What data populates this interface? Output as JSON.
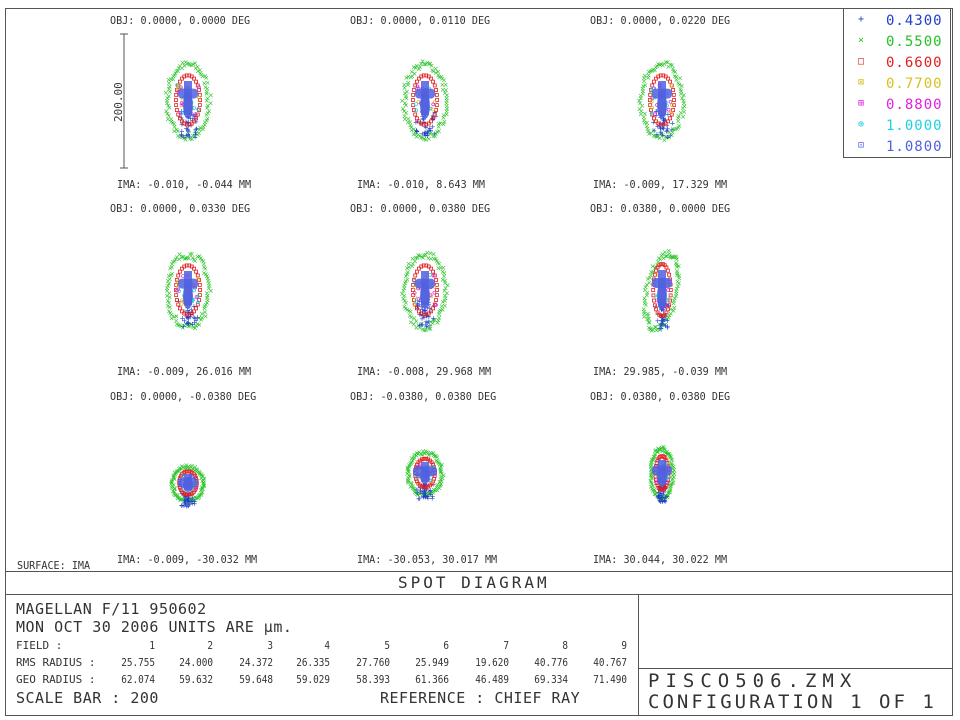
{
  "spots": [
    {
      "obj": "OBJ: 0.0000, 0.0000 DEG",
      "ima": "IMA: -0.010, -0.044 MM",
      "shape": "center"
    },
    {
      "obj": "OBJ: 0.0000, 0.0110 DEG",
      "ima": "IMA: -0.010, 8.643 MM",
      "shape": "center"
    },
    {
      "obj": "OBJ: 0.0000, 0.0220 DEG",
      "ima": "IMA: -0.009, 17.329 MM",
      "shape": "center"
    },
    {
      "obj": "OBJ: 0.0000, 0.0330 DEG",
      "ima": "IMA: -0.009, 26.016 MM",
      "shape": "center"
    },
    {
      "obj": "OBJ: 0.0000, 0.0380 DEG",
      "ima": "IMA: -0.008, 29.968 MM",
      "shape": "center"
    },
    {
      "obj": "OBJ: 0.0380, 0.0000 DEG",
      "ima": "IMA: 29.985, -0.039 MM",
      "shape": "tilt"
    },
    {
      "obj": "OBJ: 0.0000, -0.0380 DEG",
      "ima": "IMA: -0.009, -30.032 MM",
      "shape": "low"
    },
    {
      "obj": "OBJ: -0.0380, 0.0380 DEG",
      "ima": "IMA: -30.053, 30.017 MM",
      "shape": "wide"
    },
    {
      "obj": "OBJ: 0.0380, 0.0380 DEG",
      "ima": "IMA: 30.044, 30.022 MM",
      "shape": "narrow"
    }
  ],
  "scale_label": "200.00",
  "legend": [
    {
      "value": "0.4300",
      "color": "#1f3fc8",
      "marker": "+"
    },
    {
      "value": "0.5500",
      "color": "#22c222",
      "marker": "×"
    },
    {
      "value": "0.6600",
      "color": "#e02020",
      "marker": "□"
    },
    {
      "value": "0.7700",
      "color": "#d8c020",
      "marker": "⊠"
    },
    {
      "value": "0.8800",
      "color": "#e020e0",
      "marker": "⊞"
    },
    {
      "value": "1.0000",
      "color": "#20d0e0",
      "marker": "⊕"
    },
    {
      "value": "1.0800",
      "color": "#5060e0",
      "marker": "⊡"
    }
  ],
  "surface_label": "SURFACE: IMA",
  "title": "SPOT DIAGRAM",
  "info": {
    "line1": "MAGELLAN F/11 950602",
    "line2": "MON OCT 30 2006  UNITS ARE µm.",
    "field_label": "FIELD     :",
    "fields": [
      "1",
      "2",
      "3",
      "4",
      "5",
      "6",
      "7",
      "8",
      "9"
    ],
    "rms_label": "RMS RADIUS :",
    "rms": [
      "25.755",
      "24.000",
      "24.372",
      "26.335",
      "27.760",
      "25.949",
      "19.620",
      "40.776",
      "40.767"
    ],
    "geo_label": "GEO RADIUS :",
    "geo": [
      "62.074",
      "59.632",
      "59.648",
      "59.029",
      "58.393",
      "61.366",
      "46.489",
      "69.334",
      "71.490"
    ],
    "scale_text": "SCALE BAR  :    200",
    "reference": "REFERENCE   : CHIEF RAY"
  },
  "file": {
    "name": "PISCO506.ZMX",
    "config": "CONFIGURATION 1 OF 1"
  }
}
